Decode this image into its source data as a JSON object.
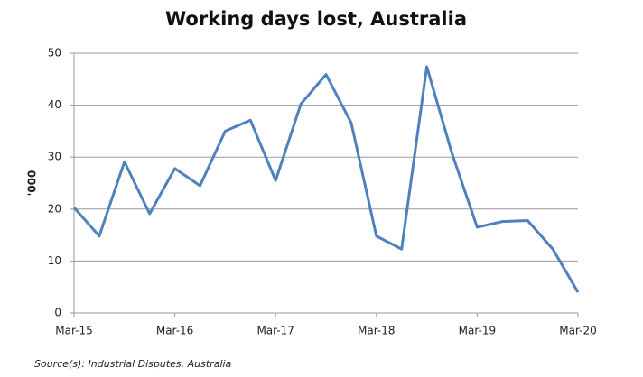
{
  "chart_data": {
    "type": "line",
    "title": "Working days lost, Australia",
    "y_label": "'000",
    "source": "Source(s): Industrial Disputes, Australia",
    "categories": [
      "Mar-15",
      null,
      null,
      null,
      "Mar-16",
      null,
      null,
      null,
      "Mar-17",
      null,
      null,
      null,
      "Mar-18",
      null,
      null,
      null,
      "Mar-19",
      null,
      null,
      null,
      "Mar-20"
    ],
    "values": [
      20.3,
      14.8,
      29.1,
      19.1,
      27.8,
      24.5,
      35,
      37.1,
      25.5,
      40.2,
      45.9,
      36.6,
      14.8,
      12.3,
      47.4,
      30.7,
      16.5,
      17.6,
      17.8,
      12.3,
      4
    ],
    "color": "#4f81bd",
    "ylim": [
      0,
      50
    ],
    "yticks": [
      0,
      10,
      20,
      30,
      40,
      50
    ],
    "grid": true
  }
}
